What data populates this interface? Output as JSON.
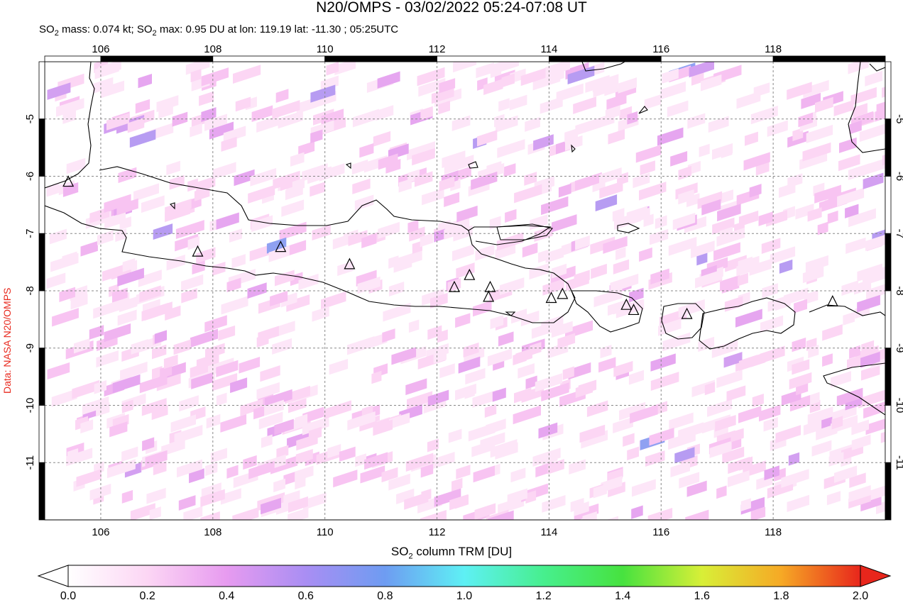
{
  "title": "N20/OMPS - 03/02/2022 05:24-07:08 UT",
  "subtitle": {
    "prefix": "SO",
    "sub1": "2",
    "mid1": " mass: 0.074 kt; SO",
    "sub2": "2",
    "rest": " max: 0.95 DU at lon: 119.19 lat: -11.30 ; 05:25UTC"
  },
  "side_label": "Data: NASA N20/OMPS",
  "map": {
    "lon_range": [
      105.0,
      120.0
    ],
    "lat_range": [
      -12.0,
      -4.0
    ],
    "lon_ticks": [
      "106",
      "108",
      "110",
      "112",
      "114",
      "116",
      "118"
    ],
    "lat_ticks": [
      "-5",
      "-6",
      "-7",
      "-8",
      "-9",
      "-10",
      "-11"
    ],
    "volcanoes": [
      {
        "lon": 105.42,
        "lat": -6.1
      },
      {
        "lon": 107.73,
        "lat": -7.32
      },
      {
        "lon": 109.21,
        "lat": -7.24
      },
      {
        "lon": 110.44,
        "lat": -7.54
      },
      {
        "lon": 112.31,
        "lat": -7.94
      },
      {
        "lon": 112.58,
        "lat": -7.73
      },
      {
        "lon": 112.95,
        "lat": -7.94
      },
      {
        "lon": 112.92,
        "lat": -8.11
      },
      {
        "lon": 114.04,
        "lat": -8.13
      },
      {
        "lon": 114.24,
        "lat": -8.06
      },
      {
        "lon": 115.38,
        "lat": -8.25
      },
      {
        "lon": 115.51,
        "lat": -8.34
      },
      {
        "lon": 116.46,
        "lat": -8.41
      },
      {
        "lon": 119.06,
        "lat": -8.19
      }
    ]
  },
  "colorbar": {
    "label_prefix": "SO",
    "label_sub": "2",
    "label_rest": " column TRM [DU]",
    "ticks": [
      "0.0",
      "0.2",
      "0.4",
      "0.6",
      "0.8",
      "1.0",
      "1.2",
      "1.4",
      "1.6",
      "1.8",
      "2.0"
    ],
    "range": [
      0.0,
      2.0
    ],
    "colors": [
      "#ffffff",
      "#fcd6f4",
      "#e79bf0",
      "#a98ef3",
      "#6e9cf2",
      "#5ef0f4",
      "#47ef8e",
      "#47e23f",
      "#d8ef37",
      "#f6a925",
      "#e8261c"
    ]
  }
}
